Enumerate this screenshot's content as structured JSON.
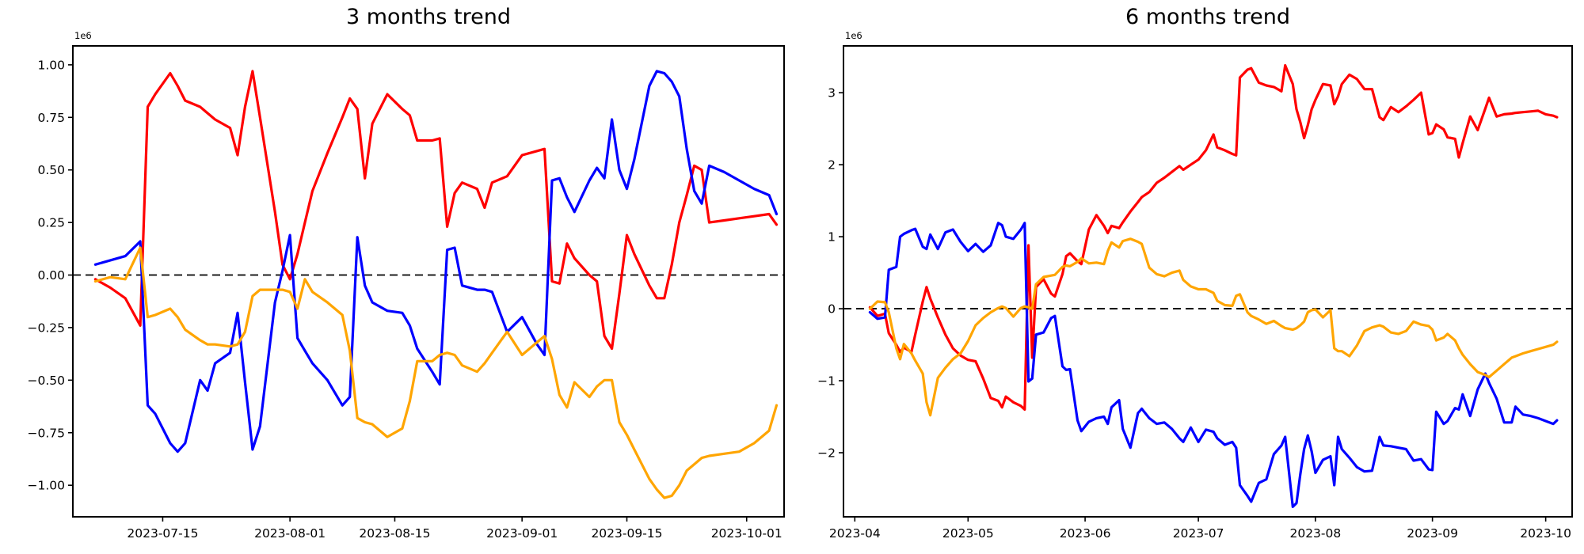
{
  "page": {
    "background": "#ffffff",
    "year": "2023"
  },
  "chart_data": [
    {
      "type": "line",
      "title": "3 months trend",
      "offset_label": "1e6",
      "xlabel": "",
      "ylabel": "",
      "grid": false,
      "legend": false,
      "zero_line": {
        "style": "dashed",
        "color": "#000000"
      },
      "xlim_dates": [
        "07-03",
        "10-06"
      ],
      "ylim": [
        -1.15,
        1.09
      ],
      "x_tick_dates": [
        "07-15",
        "08-01",
        "08-15",
        "09-01",
        "09-15",
        "10-01"
      ],
      "x_tick_labels": [
        "2023-07-15",
        "2023-08-01",
        "2023-08-15",
        "2023-09-01",
        "2023-09-15",
        "2023-10-01"
      ],
      "y_tick_values": [
        1.0,
        0.75,
        0.5,
        0.25,
        0.0,
        -0.25,
        -0.5,
        -0.75,
        -1.0
      ],
      "y_tick_labels": [
        "1.00",
        "0.75",
        "0.50",
        "0.25",
        "0.00",
        "−0.25",
        "−0.50",
        "−0.75",
        "−1.00"
      ],
      "dates": [
        "07-06",
        "07-08",
        "07-10",
        "07-12",
        "07-13",
        "07-14",
        "07-16",
        "07-17",
        "07-18",
        "07-20",
        "07-21",
        "07-22",
        "07-24",
        "07-25",
        "07-26",
        "07-27",
        "07-28",
        "07-30",
        "07-31",
        "08-01",
        "08-02",
        "08-03",
        "08-04",
        "08-06",
        "08-08",
        "08-09",
        "08-10",
        "08-11",
        "08-12",
        "08-14",
        "08-16",
        "08-17",
        "08-18",
        "08-20",
        "08-21",
        "08-22",
        "08-23",
        "08-24",
        "08-26",
        "08-27",
        "08-28",
        "08-30",
        "09-01",
        "09-03",
        "09-04",
        "09-05",
        "09-06",
        "09-07",
        "09-08",
        "09-10",
        "09-11",
        "09-12",
        "09-13",
        "09-14",
        "09-15",
        "09-16",
        "09-18",
        "09-19",
        "09-20",
        "09-21",
        "09-22",
        "09-23",
        "09-24",
        "09-25",
        "09-26",
        "09-28",
        "09-30",
        "10-02",
        "10-04",
        "10-05"
      ],
      "series": [
        {
          "name": "red",
          "color": "#ff0000",
          "values": [
            -0.02,
            -0.06,
            -0.11,
            -0.24,
            0.8,
            0.86,
            0.96,
            0.9,
            0.83,
            0.8,
            0.77,
            0.74,
            0.7,
            0.57,
            0.8,
            0.97,
            0.75,
            0.3,
            0.05,
            -0.02,
            0.1,
            0.25,
            0.4,
            0.58,
            0.75,
            0.84,
            0.79,
            0.46,
            0.72,
            0.86,
            0.79,
            0.76,
            0.64,
            0.64,
            0.65,
            0.23,
            0.39,
            0.44,
            0.41,
            0.32,
            0.44,
            0.47,
            0.57,
            0.59,
            0.6,
            -0.03,
            -0.04,
            0.15,
            0.08,
            0.0,
            -0.03,
            -0.29,
            -0.35,
            -0.09,
            0.19,
            0.1,
            -0.05,
            -0.11,
            -0.11,
            0.05,
            0.25,
            0.38,
            0.52,
            0.5,
            0.25,
            0.26,
            0.27,
            0.28,
            0.29,
            0.24
          ]
        },
        {
          "name": "blue",
          "color": "#0000ff",
          "values": [
            0.05,
            0.07,
            0.09,
            0.16,
            -0.62,
            -0.66,
            -0.8,
            -0.84,
            -0.8,
            -0.5,
            -0.55,
            -0.42,
            -0.37,
            -0.18,
            -0.51,
            -0.83,
            -0.72,
            -0.13,
            0.02,
            0.19,
            -0.3,
            -0.36,
            -0.42,
            -0.5,
            -0.62,
            -0.58,
            0.18,
            -0.05,
            -0.13,
            -0.17,
            -0.18,
            -0.24,
            -0.35,
            -0.46,
            -0.52,
            0.12,
            0.13,
            -0.05,
            -0.07,
            -0.07,
            -0.08,
            -0.27,
            -0.2,
            -0.33,
            -0.38,
            0.45,
            0.46,
            0.37,
            0.3,
            0.45,
            0.51,
            0.46,
            0.74,
            0.5,
            0.41,
            0.55,
            0.9,
            0.97,
            0.96,
            0.92,
            0.85,
            0.6,
            0.4,
            0.34,
            0.52,
            0.49,
            0.45,
            0.41,
            0.38,
            0.29
          ]
        },
        {
          "name": "orange",
          "color": "#ffa500",
          "values": [
            -0.03,
            -0.01,
            -0.02,
            0.13,
            -0.2,
            -0.19,
            -0.16,
            -0.2,
            -0.26,
            -0.31,
            -0.33,
            -0.33,
            -0.34,
            -0.33,
            -0.27,
            -0.1,
            -0.07,
            -0.07,
            -0.07,
            -0.08,
            -0.16,
            -0.02,
            -0.08,
            -0.13,
            -0.19,
            -0.36,
            -0.68,
            -0.7,
            -0.71,
            -0.77,
            -0.73,
            -0.6,
            -0.41,
            -0.41,
            -0.38,
            -0.37,
            -0.38,
            -0.43,
            -0.46,
            -0.42,
            -0.37,
            -0.27,
            -0.38,
            -0.32,
            -0.29,
            -0.4,
            -0.57,
            -0.63,
            -0.51,
            -0.58,
            -0.53,
            -0.5,
            -0.5,
            -0.7,
            -0.76,
            -0.83,
            -0.97,
            -1.02,
            -1.06,
            -1.05,
            -1.0,
            -0.93,
            -0.9,
            -0.87,
            -0.86,
            -0.85,
            -0.84,
            -0.8,
            -0.74,
            -0.62
          ]
        }
      ]
    },
    {
      "type": "line",
      "title": "6 months trend",
      "offset_label": "1e6",
      "xlabel": "",
      "ylabel": "",
      "grid": false,
      "legend": false,
      "zero_line": {
        "style": "dashed",
        "color": "#000000"
      },
      "xlim_dates": [
        "03-29",
        "10-08"
      ],
      "ylim": [
        -2.89,
        3.65
      ],
      "x_tick_dates": [
        "04-01",
        "05-01",
        "06-01",
        "07-01",
        "08-01",
        "09-01",
        "10-01"
      ],
      "x_tick_labels": [
        "2023-04",
        "2023-05",
        "2023-06",
        "2023-07",
        "2023-08",
        "2023-09",
        "2023-10"
      ],
      "y_tick_values": [
        3,
        2,
        1,
        0,
        -1,
        -2
      ],
      "y_tick_labels": [
        "3",
        "2",
        "1",
        "0",
        "−1",
        "−2"
      ],
      "dates": [
        "04-05",
        "04-07",
        "04-09",
        "04-10",
        "04-12",
        "04-13",
        "04-14",
        "04-16",
        "04-17",
        "04-19",
        "04-20",
        "04-21",
        "04-23",
        "04-25",
        "04-27",
        "04-29",
        "05-01",
        "05-03",
        "05-05",
        "05-07",
        "05-09",
        "05-10",
        "05-11",
        "05-13",
        "05-15",
        "05-16",
        "05-17",
        "05-18",
        "05-19",
        "05-21",
        "05-23",
        "05-24",
        "05-26",
        "05-27",
        "05-28",
        "05-30",
        "05-31",
        "06-02",
        "06-04",
        "06-06",
        "06-07",
        "06-08",
        "06-10",
        "06-11",
        "06-13",
        "06-15",
        "06-16",
        "06-18",
        "06-20",
        "06-22",
        "06-24",
        "06-26",
        "06-27",
        "06-29",
        "07-01",
        "07-03",
        "07-05",
        "07-06",
        "07-08",
        "07-10",
        "07-11",
        "07-12",
        "07-14",
        "07-15",
        "07-17",
        "07-19",
        "07-21",
        "07-23",
        "07-24",
        "07-26",
        "07-27",
        "07-28",
        "07-29",
        "07-30",
        "07-31",
        "08-01",
        "08-03",
        "08-05",
        "08-06",
        "08-07",
        "08-08",
        "08-10",
        "08-12",
        "08-14",
        "08-16",
        "08-18",
        "08-19",
        "08-21",
        "08-23",
        "08-25",
        "08-27",
        "08-29",
        "08-31",
        "09-01",
        "09-02",
        "09-04",
        "09-05",
        "09-07",
        "09-08",
        "09-09",
        "09-11",
        "09-13",
        "09-15",
        "09-16",
        "09-18",
        "09-20",
        "09-22",
        "09-23",
        "09-25",
        "09-27",
        "09-29",
        "10-01",
        "10-03",
        "10-04"
      ],
      "series": [
        {
          "name": "red",
          "color": "#ff0000",
          "values": [
            0.02,
            -0.1,
            -0.07,
            -0.34,
            -0.5,
            -0.6,
            -0.54,
            -0.6,
            -0.36,
            0.1,
            0.3,
            0.14,
            -0.12,
            -0.36,
            -0.55,
            -0.65,
            -0.71,
            -0.73,
            -0.97,
            -1.24,
            -1.28,
            -1.37,
            -1.22,
            -1.3,
            -1.35,
            -1.4,
            0.88,
            -0.68,
            0.3,
            0.41,
            0.21,
            0.17,
            0.48,
            0.73,
            0.77,
            0.66,
            0.62,
            1.1,
            1.3,
            1.15,
            1.05,
            1.15,
            1.12,
            1.2,
            1.35,
            1.48,
            1.55,
            1.62,
            1.75,
            1.82,
            1.9,
            1.98,
            1.93,
            2.0,
            2.07,
            2.2,
            2.42,
            2.24,
            2.2,
            2.15,
            2.13,
            3.21,
            3.32,
            3.34,
            3.14,
            3.1,
            3.08,
            3.02,
            3.38,
            3.12,
            2.77,
            2.59,
            2.37,
            2.55,
            2.77,
            2.9,
            3.12,
            3.1,
            2.84,
            2.95,
            3.12,
            3.25,
            3.19,
            3.05,
            3.05,
            2.66,
            2.62,
            2.8,
            2.73,
            2.81,
            2.9,
            3.0,
            2.42,
            2.44,
            2.56,
            2.49,
            2.38,
            2.36,
            2.1,
            2.3,
            2.67,
            2.48,
            2.78,
            2.93,
            2.67,
            2.7,
            2.71,
            2.72,
            2.73,
            2.74,
            2.75,
            2.7,
            2.68,
            2.66
          ]
        },
        {
          "name": "blue",
          "color": "#0000ff",
          "values": [
            -0.05,
            -0.14,
            -0.12,
            0.54,
            0.58,
            1.0,
            1.04,
            1.09,
            1.11,
            0.86,
            0.83,
            1.03,
            0.83,
            1.06,
            1.1,
            0.93,
            0.8,
            0.9,
            0.79,
            0.88,
            1.19,
            1.16,
            1.0,
            0.97,
            1.1,
            1.19,
            -1.01,
            -0.97,
            -0.36,
            -0.33,
            -0.13,
            -0.1,
            -0.8,
            -0.85,
            -0.84,
            -1.55,
            -1.7,
            -1.57,
            -1.52,
            -1.5,
            -1.6,
            -1.37,
            -1.27,
            -1.67,
            -1.93,
            -1.45,
            -1.39,
            -1.52,
            -1.6,
            -1.58,
            -1.67,
            -1.8,
            -1.85,
            -1.65,
            -1.85,
            -1.68,
            -1.71,
            -1.8,
            -1.89,
            -1.85,
            -1.93,
            -2.45,
            -2.6,
            -2.68,
            -2.42,
            -2.37,
            -2.02,
            -1.9,
            -1.78,
            -2.75,
            -2.7,
            -2.3,
            -1.95,
            -1.76,
            -1.98,
            -2.28,
            -2.1,
            -2.05,
            -2.45,
            -1.78,
            -1.95,
            -2.07,
            -2.2,
            -2.26,
            -2.25,
            -1.78,
            -1.9,
            -1.91,
            -1.93,
            -1.95,
            -2.11,
            -2.09,
            -2.23,
            -2.24,
            -1.43,
            -1.6,
            -1.56,
            -1.38,
            -1.4,
            -1.19,
            -1.49,
            -1.12,
            -0.9,
            -1.03,
            -1.25,
            -1.58,
            -1.58,
            -1.36,
            -1.47,
            -1.49,
            -1.52,
            -1.56,
            -1.6,
            -1.55
          ]
        },
        {
          "name": "orange",
          "color": "#ffa500",
          "values": [
            0.0,
            0.1,
            0.09,
            -0.05,
            -0.55,
            -0.7,
            -0.49,
            -0.62,
            -0.72,
            -0.9,
            -1.3,
            -1.48,
            -0.96,
            -0.82,
            -0.7,
            -0.62,
            -0.45,
            -0.23,
            -0.13,
            -0.05,
            0.01,
            0.03,
            0.01,
            -0.11,
            0.01,
            0.03,
            0.02,
            0.0,
            0.34,
            0.44,
            0.46,
            0.47,
            0.58,
            0.6,
            0.59,
            0.65,
            0.7,
            0.63,
            0.64,
            0.62,
            0.8,
            0.92,
            0.85,
            0.94,
            0.97,
            0.93,
            0.9,
            0.57,
            0.48,
            0.45,
            0.5,
            0.53,
            0.4,
            0.31,
            0.27,
            0.27,
            0.22,
            0.11,
            0.05,
            0.04,
            0.18,
            0.2,
            -0.05,
            -0.1,
            -0.15,
            -0.21,
            -0.17,
            -0.24,
            -0.27,
            -0.29,
            -0.27,
            -0.23,
            -0.18,
            -0.05,
            -0.02,
            -0.01,
            -0.12,
            -0.02,
            -0.55,
            -0.59,
            -0.59,
            -0.66,
            -0.51,
            -0.31,
            -0.26,
            -0.23,
            -0.25,
            -0.33,
            -0.35,
            -0.31,
            -0.18,
            -0.22,
            -0.24,
            -0.29,
            -0.44,
            -0.4,
            -0.35,
            -0.44,
            -0.55,
            -0.64,
            -0.77,
            -0.88,
            -0.92,
            -0.95,
            -0.86,
            -0.77,
            -0.68,
            -0.66,
            -0.62,
            -0.59,
            -0.56,
            -0.53,
            -0.5,
            -0.46
          ]
        }
      ]
    }
  ]
}
